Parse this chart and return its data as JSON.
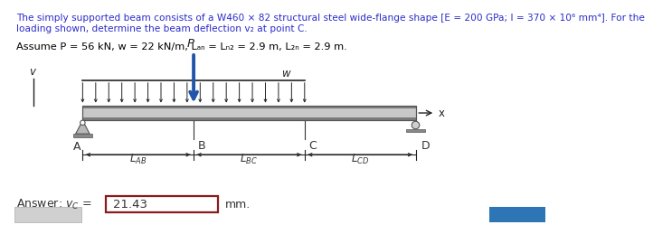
{
  "title_line1": "The simply supported beam consists of a W460 × 82 structural steel wide-flange shape [E = 200 GPa; I = 370 × 10⁶ mm⁴]. For the",
  "title_line2": "loading shown, determine the beam deflection v₂ at point C.",
  "assume_line": "Assume P = 56 kN, w = 22 kN/m, Lₐₙ = Lₙ₂ = 2.9 m, L₂ₙ = 2.9 m.",
  "answer_value": "21.43",
  "title_color": "#2b2bcc",
  "assume_color": "#000000",
  "text_color": "#333333",
  "beam_fill": "#c8c8c8",
  "beam_edge": "#555555",
  "beam_stripe_dark": "#7a7a7a",
  "load_blue": "#2255aa",
  "arrow_color": "#222222",
  "answer_box_color": "#8b1a1a",
  "bg_color": "#ffffff",
  "blue_btn": "#2e75b6",
  "gray_btn": "#d0d0d0",
  "bx0": 1.05,
  "bx1": 5.8,
  "by0": 1.5,
  "by1": 1.72,
  "beam_segments": 3
}
